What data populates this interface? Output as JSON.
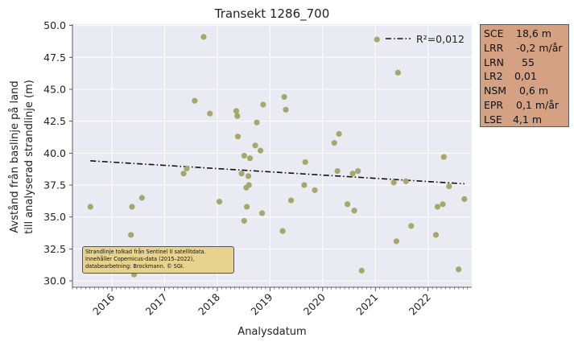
{
  "chart_data": {
    "type": "scatter",
    "title": "Transekt 1286_700",
    "xlabel": "Analysdatum",
    "ylabel_lines": [
      "Avstånd från baslinje på land",
      "till analyserad strandlinje (m)"
    ],
    "xlim": [
      2015.25,
      2022.83
    ],
    "ylim": [
      29.5,
      50.1
    ],
    "x_ticks": [
      2016,
      2017,
      2018,
      2019,
      2020,
      2021,
      2022
    ],
    "x_tick_labels": [
      "2016",
      "2017",
      "2018",
      "2019",
      "2020",
      "2021",
      "2022"
    ],
    "y_ticks": [
      30.0,
      32.5,
      35.0,
      37.5,
      40.0,
      42.5,
      45.0,
      47.5,
      50.0
    ],
    "y_tick_labels": [
      "30.0",
      "32.5",
      "35.0",
      "37.5",
      "40.0",
      "42.5",
      "45.0",
      "47.5",
      "50.0"
    ],
    "grid": true,
    "background": "#eaeaf2",
    "point_color": "#a4a86a",
    "trend_color": "#111111",
    "points": [
      [
        2015.59,
        35.8
      ],
      [
        2016.38,
        35.8
      ],
      [
        2016.36,
        33.6
      ],
      [
        2016.42,
        30.5
      ],
      [
        2016.57,
        36.5
      ],
      [
        2017.36,
        38.4
      ],
      [
        2017.42,
        38.8
      ],
      [
        2017.57,
        44.1
      ],
      [
        2017.74,
        49.1
      ],
      [
        2017.86,
        43.1
      ],
      [
        2018.04,
        36.2
      ],
      [
        2018.36,
        43.3
      ],
      [
        2018.38,
        42.9
      ],
      [
        2018.39,
        41.3
      ],
      [
        2018.46,
        38.4
      ],
      [
        2018.51,
        39.8
      ],
      [
        2018.51,
        34.7
      ],
      [
        2018.55,
        37.3
      ],
      [
        2018.56,
        35.8
      ],
      [
        2018.59,
        38.2
      ],
      [
        2018.6,
        37.5
      ],
      [
        2018.62,
        39.6
      ],
      [
        2018.72,
        40.6
      ],
      [
        2018.75,
        42.4
      ],
      [
        2018.82,
        40.2
      ],
      [
        2018.85,
        35.3
      ],
      [
        2018.87,
        43.8
      ],
      [
        2019.24,
        33.9
      ],
      [
        2019.27,
        44.4
      ],
      [
        2019.3,
        43.4
      ],
      [
        2019.4,
        36.3
      ],
      [
        2019.65,
        37.5
      ],
      [
        2019.67,
        39.3
      ],
      [
        2019.85,
        37.1
      ],
      [
        2020.22,
        40.8
      ],
      [
        2020.28,
        38.6
      ],
      [
        2020.31,
        41.5
      ],
      [
        2020.47,
        36.0
      ],
      [
        2020.57,
        38.4
      ],
      [
        2020.6,
        35.5
      ],
      [
        2020.67,
        38.6
      ],
      [
        2020.74,
        30.8
      ],
      [
        2021.03,
        48.9
      ],
      [
        2021.35,
        37.7
      ],
      [
        2021.4,
        33.1
      ],
      [
        2021.43,
        46.3
      ],
      [
        2021.58,
        37.8
      ],
      [
        2021.68,
        34.3
      ],
      [
        2022.15,
        33.6
      ],
      [
        2022.18,
        35.8
      ],
      [
        2022.28,
        36.0
      ],
      [
        2022.3,
        39.7
      ],
      [
        2022.4,
        37.4
      ],
      [
        2022.58,
        30.9
      ],
      [
        2022.69,
        36.4
      ]
    ],
    "trend": {
      "x": [
        2015.59,
        2022.69
      ],
      "y": [
        39.4,
        37.6
      ],
      "style": "dash-dot"
    },
    "legend": {
      "label": "R²=0,012",
      "placement": "top-right"
    },
    "stats": [
      {
        "key": "SCE",
        "value": "18,6 m"
      },
      {
        "key": "LRR",
        "value": "-0,2 m/år"
      },
      {
        "key": "LRN",
        "value": "55"
      },
      {
        "key": "LR2",
        "value": "0,01"
      },
      {
        "key": "NSM",
        "value": "0,6 m"
      },
      {
        "key": "EPR",
        "value": "0,1 m/år"
      },
      {
        "key": "LSE",
        "value": "4,1 m"
      }
    ],
    "attribution": [
      "Strandlinje tolkad från Sentinel II satellitdata.",
      "Innehåller Copernicus-data (2015–2022),",
      "databearbetning: Brockmann. © SGI."
    ]
  }
}
